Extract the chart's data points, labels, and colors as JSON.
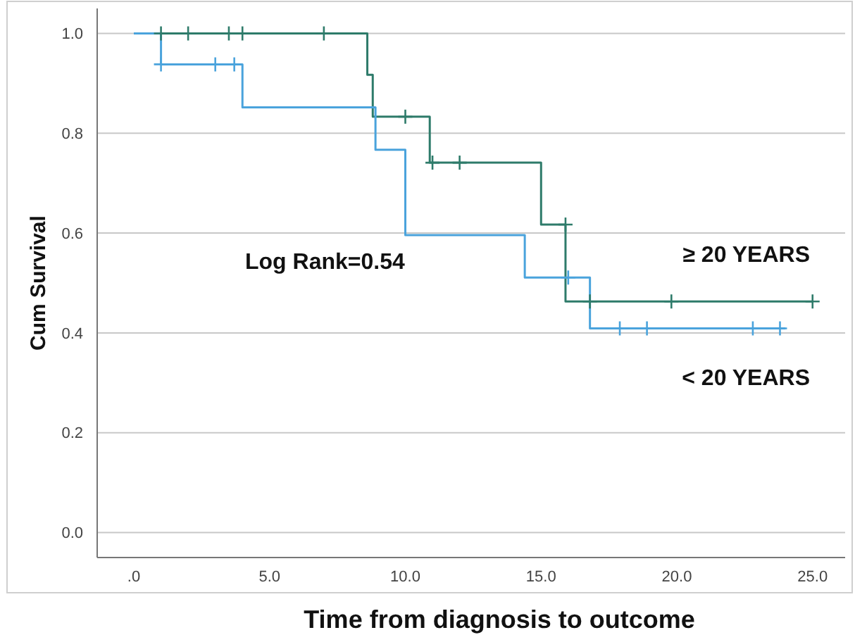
{
  "chart_data": {
    "type": "step",
    "xlabel": "Time from diagnosis to outcome",
    "ylabel": "Cum Survival",
    "annotations": [
      "Log Rank=0.54"
    ],
    "xlim": [
      -1.35,
      26.2
    ],
    "ylim": [
      -0.05,
      1.05
    ],
    "xticks": [
      {
        "value": 0,
        "label": ".0"
      },
      {
        "value": 5,
        "label": "5.0"
      },
      {
        "value": 10,
        "label": "10.0"
      },
      {
        "value": 15,
        "label": "15.0"
      },
      {
        "value": 20,
        "label": "20.0"
      },
      {
        "value": 25,
        "label": "25.0"
      }
    ],
    "yticks": [
      {
        "value": 0,
        "label": "0.0"
      },
      {
        "value": 0.2,
        "label": "0.2"
      },
      {
        "value": 0.4,
        "label": "0.4"
      },
      {
        "value": 0.6,
        "label": "0.6"
      },
      {
        "value": 0.8,
        "label": "0.8"
      },
      {
        "value": 1,
        "label": "1.0"
      }
    ],
    "grid": "y",
    "series": [
      {
        "name": "≥ 20 YEARS",
        "color": "#2e7b6a",
        "x": [
          0,
          8.6,
          8.8,
          10.9,
          15.0,
          15.9,
          25
        ],
        "values": [
          1,
          0.917,
          0.833,
          0.741,
          0.617,
          0.463,
          0.463
        ]
      },
      {
        "name": "< 20 YEARS",
        "color": "#4aa3dc",
        "x": [
          0,
          1,
          4,
          8.9,
          10,
          14.4,
          16.8,
          24
        ],
        "values": [
          1,
          0.938,
          0.852,
          0.767,
          0.596,
          0.511,
          0.409,
          0.409
        ]
      },
      {
        "type": "scatter",
        "marker": "cross",
        "color": "#2e7b6a",
        "x": [
          1,
          2,
          3.5,
          4,
          7,
          10,
          11,
          12,
          15.9,
          16.8,
          19.8,
          25
        ],
        "values": [
          1,
          1,
          1,
          1,
          1,
          0.833,
          0.741,
          0.741,
          0.617,
          0.463,
          0.463,
          0.463
        ]
      },
      {
        "type": "scatter",
        "marker": "cross",
        "color": "#4aa3dc",
        "x": [
          1,
          3,
          3.7,
          16,
          17.9,
          18.9,
          22.8,
          23.8
        ],
        "values": [
          0.938,
          0.938,
          0.938,
          0.511,
          0.409,
          0.409,
          0.409,
          0.409
        ]
      }
    ]
  }
}
